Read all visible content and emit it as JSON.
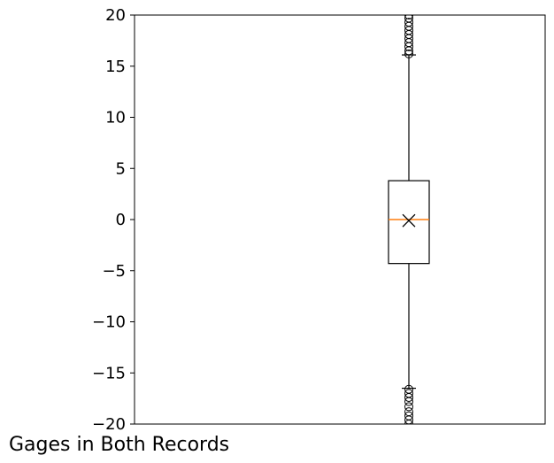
{
  "chart_data": {
    "type": "box",
    "ylim": [
      -20,
      20
    ],
    "yticks": [
      20,
      15,
      10,
      5,
      0,
      -5,
      -10,
      -15,
      -20
    ],
    "ytick_labels": [
      "20",
      "15",
      "10",
      "5",
      "0",
      "−5",
      "−10",
      "−15",
      "−20"
    ],
    "xlabel": "Gages in Both Records",
    "ylabel": "",
    "title": "",
    "grid": false,
    "box": {
      "q1": -4.3,
      "median": 0.0,
      "q3": 3.8,
      "mean": -0.1,
      "whisker_low": -16.5,
      "whisker_high": 16.1,
      "outliers_high": [
        16.2,
        16.5,
        16.9,
        17.3,
        17.7,
        18.1,
        18.5,
        18.9,
        19.3,
        19.7,
        20.0
      ],
      "outliers_low": [
        -16.6,
        -17.0,
        -17.4,
        -17.8,
        -18.3,
        -18.8,
        -19.2,
        -19.6,
        -20.0
      ]
    },
    "colors": {
      "median": "#ff7f0e",
      "box": "#000000"
    }
  }
}
